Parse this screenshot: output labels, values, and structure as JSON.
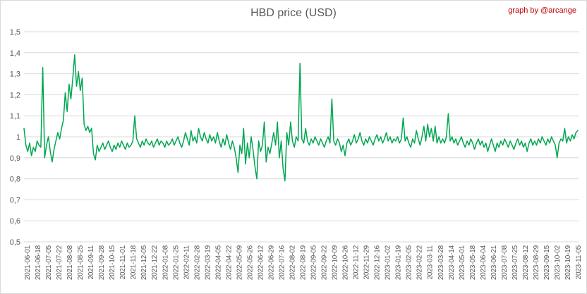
{
  "header": {
    "title": "HBD price (USD)",
    "credit": "graph by @arcange"
  },
  "colors": {
    "line": "#00a651",
    "grid": "#d9d9d9",
    "axis_text": "#595959",
    "title_text": "#595959",
    "credit_text": "#c00000",
    "background": "#ffffff",
    "border": "#d9d9d9"
  },
  "chart_data": {
    "type": "line",
    "title": "HBD price (USD)",
    "series_name": "HBD price",
    "unit": "USD",
    "legend": "none",
    "grid": "horizontal",
    "ylim": [
      0.5,
      1.5
    ],
    "y_ticks": [
      {
        "v": 1.5,
        "label": "1,5"
      },
      {
        "v": 1.4,
        "label": "1,4"
      },
      {
        "v": 1.3,
        "label": "1,3"
      },
      {
        "v": 1.2,
        "label": "1,2"
      },
      {
        "v": 1.1,
        "label": "1,1"
      },
      {
        "v": 1.0,
        "label": "1"
      },
      {
        "v": 0.9,
        "label": "0,9"
      },
      {
        "v": 0.8,
        "label": "0,8"
      },
      {
        "v": 0.7,
        "label": "0,7"
      },
      {
        "v": 0.6,
        "label": "0,6"
      },
      {
        "v": 0.5,
        "label": "0,5"
      }
    ],
    "x_start": "2021-06-01",
    "x_end": "2023-11-05",
    "sample_step_days": 3,
    "x_tick_labels": [
      "2021-06-01",
      "2021-06-18",
      "2021-07-05",
      "2021-07-22",
      "2021-08-08",
      "2021-08-25",
      "2021-09-11",
      "2021-09-28",
      "2021-10-15",
      "2021-11-01",
      "2021-11-18",
      "2021-12-05",
      "2021-12-22",
      "2022-01-08",
      "2022-01-25",
      "2022-02-11",
      "2022-02-28",
      "2022-03-19",
      "2022-04-05",
      "2022-04-22",
      "2022-05-09",
      "2022-05-26",
      "2022-06-12",
      "2022-06-29",
      "2022-07-16",
      "2022-08-02",
      "2022-08-19",
      "2022-09-05",
      "2022-09-22",
      "2022-10-09",
      "2022-10-26",
      "2022-11-12",
      "2022-11-29",
      "2022-12-16",
      "2023-01-02",
      "2023-01-19",
      "2023-02-05",
      "2023-02-22",
      "2023-03-11",
      "2023-03-28",
      "2023-04-14",
      "2023-05-01",
      "2023-05-18",
      "2023-06-04",
      "2023-06-21",
      "2023-07-08",
      "2023-07-25",
      "2023-08-12",
      "2023-08-29",
      "2023-09-15",
      "2023-10-02",
      "2023-10-19",
      "2023-11-05"
    ],
    "values": [
      1.04,
      0.96,
      0.93,
      0.97,
      0.91,
      0.95,
      0.93,
      0.98,
      0.96,
      0.95,
      1.33,
      0.9,
      0.96,
      1.0,
      0.93,
      0.88,
      0.94,
      0.98,
      1.02,
      0.99,
      1.04,
      1.08,
      1.21,
      1.12,
      1.25,
      1.18,
      1.28,
      1.39,
      1.24,
      1.31,
      1.22,
      1.28,
      1.06,
      1.03,
      1.05,
      1.02,
      1.04,
      0.92,
      0.89,
      0.96,
      0.93,
      0.95,
      0.97,
      0.94,
      0.96,
      0.98,
      0.95,
      0.93,
      0.96,
      0.94,
      0.97,
      0.95,
      0.98,
      0.96,
      0.94,
      0.97,
      0.95,
      0.96,
      0.98,
      1.1,
      0.99,
      0.97,
      0.95,
      0.98,
      0.96,
      0.99,
      0.97,
      0.96,
      0.98,
      0.95,
      0.97,
      0.99,
      0.96,
      0.98,
      0.97,
      0.95,
      0.98,
      0.96,
      0.97,
      0.99,
      0.96,
      0.98,
      1.0,
      0.97,
      0.95,
      0.98,
      1.02,
      0.99,
      0.96,
      1.03,
      0.98,
      1.0,
      0.97,
      1.04,
      1.0,
      0.98,
      1.02,
      0.99,
      0.97,
      1.01,
      0.98,
      1.0,
      0.97,
      1.02,
      0.98,
      0.95,
      0.99,
      0.96,
      1.01,
      0.97,
      0.94,
      0.98,
      0.95,
      0.9,
      0.83,
      0.96,
      0.92,
      1.04,
      0.87,
      0.97,
      0.9,
      1.0,
      0.94,
      0.86,
      0.8,
      0.98,
      0.93,
      0.96,
      1.07,
      0.88,
      0.95,
      0.92,
      0.97,
      1.02,
      0.96,
      1.07,
      0.9,
      0.98,
      0.85,
      0.79,
      1.02,
      0.96,
      1.07,
      0.98,
      0.95,
      1.0,
      0.98,
      1.35,
      0.99,
      0.97,
      1.04,
      0.98,
      0.96,
      0.99,
      0.97,
      1.0,
      0.98,
      0.96,
      0.99,
      0.97,
      0.95,
      0.98,
      1.0,
      0.97,
      1.18,
      0.98,
      0.96,
      0.99,
      0.97,
      0.93,
      0.96,
      0.91,
      0.97,
      0.99,
      0.96,
      0.98,
      1.01,
      0.97,
      0.99,
      1.02,
      0.98,
      0.96,
      0.99,
      0.97,
      1.0,
      0.98,
      0.96,
      0.99,
      1.01,
      0.98,
      1.0,
      0.97,
      0.99,
      1.02,
      0.98,
      1.0,
      0.97,
      0.99,
      0.98,
      1.0,
      0.97,
      0.99,
      1.09,
      0.98,
      1.0,
      0.97,
      0.95,
      0.99,
      0.97,
      1.03,
      0.99,
      0.96,
      1.0,
      1.05,
      0.98,
      1.06,
      1.0,
      1.04,
      0.98,
      1.05,
      0.97,
      1.0,
      0.97,
      0.99,
      0.97,
      1.0,
      1.11,
      0.98,
      1.0,
      0.97,
      0.99,
      0.96,
      0.98,
      1.0,
      0.97,
      0.95,
      0.98,
      0.96,
      0.99,
      0.97,
      0.94,
      0.97,
      0.99,
      0.96,
      0.98,
      0.95,
      0.97,
      0.93,
      0.96,
      0.99,
      0.96,
      0.93,
      0.97,
      0.95,
      0.98,
      0.96,
      0.99,
      0.97,
      0.95,
      0.98,
      0.96,
      0.94,
      0.97,
      0.99,
      0.96,
      0.98,
      0.95,
      0.97,
      0.93,
      0.97,
      0.99,
      0.96,
      0.98,
      0.96,
      0.99,
      0.97,
      1.0,
      0.98,
      0.96,
      0.99,
      0.97,
      1.0,
      0.98,
      0.96,
      0.9,
      0.97,
      0.99,
      0.98,
      1.04,
      0.97,
      1.0,
      0.98,
      1.01,
      0.99,
      1.02,
      1.03
    ]
  }
}
